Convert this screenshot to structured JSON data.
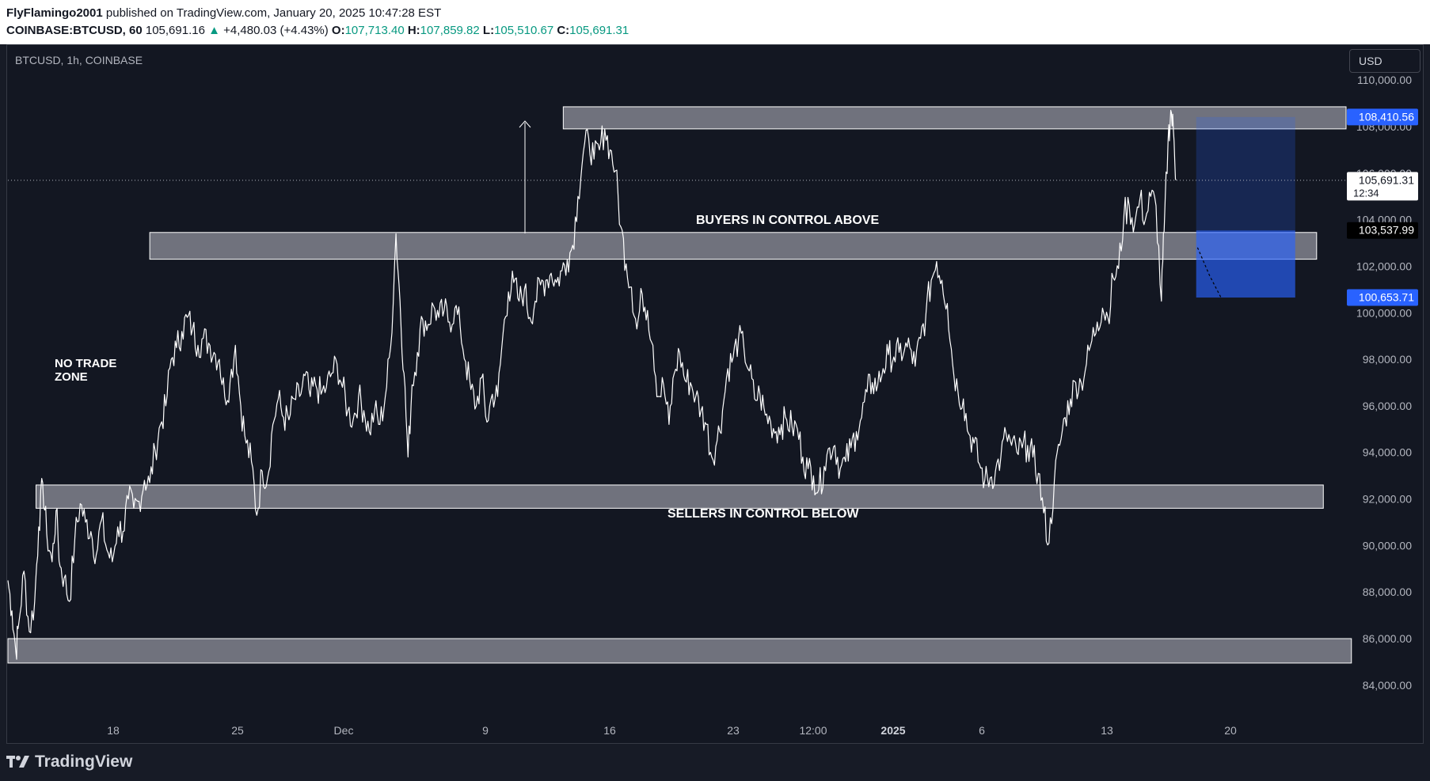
{
  "header": {
    "publisher": "FlyFlamingo2001",
    "published_text": "published on TradingView.com, January 20, 2025 10:47:28 EST",
    "symbol_line": "COINBASE:BTCUSD, 60",
    "last_price": "105,691.16",
    "change": "+4,480.03 (+4.43%)",
    "open_label": "O:",
    "open": "107,713.40",
    "high_label": "H:",
    "high": "107,859.82",
    "low_label": "L:",
    "low": "105,510.67",
    "close_label": "C:",
    "close": "105,691.31"
  },
  "legend": {
    "symbol": "BTCUSD, 1h, COINBASE"
  },
  "currency_button": "USD",
  "branding": {
    "name": "TradingView"
  },
  "annotations": {
    "buyers": "BUYERS IN CONTROL ABOVE",
    "sellers": "SELLERS IN CONTROL BELOW",
    "no_trade_line1": "NO TRADE",
    "no_trade_line2": "ZONE"
  },
  "price_tags": {
    "target": "108,410.56",
    "current": "105,691.31",
    "countdown": "12:34",
    "entry": "103,537.99",
    "stop": "100,653.71"
  },
  "colors": {
    "background": "#131722",
    "price_line": "#ffffff",
    "zone_fill": "#787b86",
    "position_box": "#2962ff",
    "up": "#089981"
  },
  "chart_data": {
    "type": "line",
    "symbol": "BTCUSD",
    "interval": "1h",
    "exchange": "COINBASE",
    "x_ticks": [
      "18",
      "25",
      "Dec",
      "9",
      "16",
      "23",
      "12:00",
      "2025",
      "6",
      "13",
      "20"
    ],
    "y_ticks": [
      84000,
      86000,
      88000,
      90000,
      92000,
      94000,
      96000,
      98000,
      100000,
      102000,
      104000,
      106000,
      108000,
      110000
    ],
    "y_tick_labels": [
      "84,000.00",
      "86,000.00",
      "88,000.00",
      "90,000.00",
      "92,000.00",
      "94,000.00",
      "96,000.00",
      "98,000.00",
      "100,000.00",
      "102,000.00",
      "104,000.00",
      "106,000.00",
      "108,000.00",
      "110,000.00"
    ],
    "ylim": [
      82500,
      111500
    ],
    "t_range": [
      0,
      100
    ],
    "series": [
      {
        "values": [
          [
            0,
            88500
          ],
          [
            0.3,
            87200
          ],
          [
            0.6,
            85400
          ],
          [
            0.8,
            86600
          ],
          [
            1.2,
            88900
          ],
          [
            1.6,
            86300
          ],
          [
            2.0,
            87600
          ],
          [
            2.3,
            90800
          ],
          [
            2.6,
            92700
          ],
          [
            2.9,
            90500
          ],
          [
            3.3,
            89300
          ],
          [
            3.6,
            91500
          ],
          [
            3.9,
            89100
          ],
          [
            4.2,
            88600
          ],
          [
            4.6,
            87600
          ],
          [
            5.0,
            90300
          ],
          [
            5.4,
            91800
          ],
          [
            5.8,
            91000
          ],
          [
            6.2,
            90600
          ],
          [
            6.6,
            89600
          ],
          [
            7.0,
            91100
          ],
          [
            7.4,
            89800
          ],
          [
            7.8,
            89300
          ],
          [
            8.2,
            90800
          ],
          [
            8.6,
            90600
          ],
          [
            9.0,
            92000
          ],
          [
            9.4,
            91600
          ],
          [
            9.8,
            91900
          ],
          [
            10.2,
            92800
          ],
          [
            10.6,
            92700
          ],
          [
            11.0,
            94100
          ],
          [
            11.4,
            95200
          ],
          [
            11.8,
            96000
          ],
          [
            12.2,
            98000
          ],
          [
            12.6,
            98500
          ],
          [
            13.0,
            99200
          ],
          [
            13.4,
            99800
          ],
          [
            13.8,
            99300
          ],
          [
            14.2,
            98600
          ],
          [
            14.6,
            98900
          ],
          [
            15.0,
            98700
          ],
          [
            15.4,
            98300
          ],
          [
            15.8,
            98000
          ],
          [
            16.2,
            96400
          ],
          [
            16.6,
            97000
          ],
          [
            17.0,
            98600
          ],
          [
            17.4,
            96000
          ],
          [
            17.8,
            94400
          ],
          [
            18.2,
            93600
          ],
          [
            18.6,
            91300
          ],
          [
            19.0,
            93200
          ],
          [
            19.4,
            92900
          ],
          [
            19.8,
            95200
          ],
          [
            20.2,
            96300
          ],
          [
            20.6,
            95500
          ],
          [
            21.0,
            95400
          ],
          [
            21.4,
            96300
          ],
          [
            21.8,
            96400
          ],
          [
            22.2,
            97300
          ],
          [
            22.6,
            96400
          ],
          [
            23.0,
            96900
          ],
          [
            23.4,
            96500
          ],
          [
            23.8,
            96800
          ],
          [
            24.2,
            97400
          ],
          [
            24.6,
            97800
          ],
          [
            25.0,
            96800
          ],
          [
            25.4,
            95800
          ],
          [
            25.8,
            95400
          ],
          [
            26.2,
            96400
          ],
          [
            26.6,
            95800
          ],
          [
            27.0,
            94900
          ],
          [
            27.4,
            95800
          ],
          [
            27.8,
            95200
          ],
          [
            28.2,
            96400
          ],
          [
            28.6,
            98500
          ],
          [
            29.0,
            103400
          ],
          [
            29.3,
            100500
          ],
          [
            29.6,
            97400
          ],
          [
            29.9,
            93800
          ],
          [
            30.2,
            96900
          ],
          [
            30.6,
            98300
          ],
          [
            31.0,
            99700
          ],
          [
            31.4,
            99500
          ],
          [
            31.8,
            100300
          ],
          [
            32.2,
            99800
          ],
          [
            32.6,
            100100
          ],
          [
            33.0,
            99600
          ],
          [
            33.4,
            100200
          ],
          [
            33.8,
            99400
          ],
          [
            34.2,
            97900
          ],
          [
            34.6,
            96700
          ],
          [
            35.0,
            96000
          ],
          [
            35.4,
            97200
          ],
          [
            35.8,
            95300
          ],
          [
            36.2,
            96500
          ],
          [
            36.6,
            96400
          ],
          [
            37.0,
            99100
          ],
          [
            37.4,
            100900
          ],
          [
            37.8,
            101300
          ],
          [
            38.2,
            100500
          ],
          [
            38.6,
            101000
          ],
          [
            39.0,
            99800
          ],
          [
            39.4,
            100500
          ],
          [
            39.8,
            101200
          ],
          [
            40.2,
            101400
          ],
          [
            40.6,
            101700
          ],
          [
            41.0,
            101300
          ],
          [
            41.4,
            101800
          ],
          [
            41.8,
            102300
          ],
          [
            42.2,
            102900
          ],
          [
            42.6,
            105000
          ],
          [
            43.0,
            106900
          ],
          [
            43.4,
            107500
          ],
          [
            43.8,
            106600
          ],
          [
            44.2,
            107000
          ],
          [
            44.6,
            107900
          ],
          [
            45.0,
            107000
          ],
          [
            45.4,
            106100
          ],
          [
            45.8,
            103700
          ],
          [
            46.2,
            102100
          ],
          [
            46.6,
            101100
          ],
          [
            47.0,
            99300
          ],
          [
            47.4,
            100800
          ],
          [
            47.8,
            100100
          ],
          [
            48.2,
            98600
          ],
          [
            48.6,
            96400
          ],
          [
            49.0,
            96900
          ],
          [
            49.4,
            95200
          ],
          [
            49.8,
            97400
          ],
          [
            50.2,
            98300
          ],
          [
            50.6,
            97100
          ],
          [
            51.0,
            97000
          ],
          [
            51.4,
            96400
          ],
          [
            51.8,
            95800
          ],
          [
            52.2,
            95200
          ],
          [
            52.6,
            93800
          ],
          [
            53.0,
            94500
          ],
          [
            53.4,
            95800
          ],
          [
            53.8,
            97600
          ],
          [
            54.2,
            98100
          ],
          [
            54.6,
            98900
          ],
          [
            55.0,
            98500
          ],
          [
            55.4,
            97500
          ],
          [
            55.8,
            96300
          ],
          [
            56.2,
            96500
          ],
          [
            56.6,
            95600
          ],
          [
            57.0,
            95300
          ],
          [
            57.4,
            94900
          ],
          [
            57.8,
            95200
          ],
          [
            58.2,
            95400
          ],
          [
            58.6,
            95100
          ],
          [
            59.0,
            95000
          ],
          [
            59.4,
            93800
          ],
          [
            59.8,
            93300
          ],
          [
            60.2,
            93000
          ],
          [
            60.6,
            92400
          ],
          [
            61.0,
            93400
          ],
          [
            61.4,
            94200
          ],
          [
            61.8,
            94300
          ],
          [
            62.2,
            93300
          ],
          [
            62.6,
            93600
          ],
          [
            63.0,
            94200
          ],
          [
            63.4,
            94900
          ],
          [
            63.8,
            95500
          ],
          [
            64.2,
            96600
          ],
          [
            64.6,
            97000
          ],
          [
            65.0,
            96900
          ],
          [
            65.4,
            97600
          ],
          [
            65.8,
            98200
          ],
          [
            66.2,
            98100
          ],
          [
            66.6,
            98300
          ],
          [
            67.0,
            98400
          ],
          [
            67.4,
            98500
          ],
          [
            67.8,
            97700
          ],
          [
            68.2,
            98900
          ],
          [
            68.6,
            99900
          ],
          [
            69.0,
            101400
          ],
          [
            69.4,
            102200
          ],
          [
            69.8,
            101400
          ],
          [
            70.2,
            100400
          ],
          [
            70.6,
            97800
          ],
          [
            71.0,
            96600
          ],
          [
            71.4,
            96300
          ],
          [
            71.8,
            94800
          ],
          [
            72.2,
            94400
          ],
          [
            72.6,
            93500
          ],
          [
            73.0,
            92800
          ],
          [
            73.4,
            92900
          ],
          [
            73.8,
            93200
          ],
          [
            74.2,
            93800
          ],
          [
            74.6,
            94800
          ],
          [
            75.0,
            94300
          ],
          [
            75.4,
            94000
          ],
          [
            75.8,
            94200
          ],
          [
            76.2,
            94300
          ],
          [
            76.6,
            93800
          ],
          [
            77.0,
            93100
          ],
          [
            77.4,
            91400
          ],
          [
            77.8,
            90100
          ],
          [
            78.2,
            92800
          ],
          [
            78.6,
            94300
          ],
          [
            79.0,
            95500
          ],
          [
            79.4,
            96300
          ],
          [
            79.8,
            97000
          ],
          [
            80.2,
            97000
          ],
          [
            80.6,
            97800
          ],
          [
            81.0,
            98800
          ],
          [
            81.4,
            99600
          ],
          [
            81.8,
            100200
          ],
          [
            82.2,
            99800
          ],
          [
            82.6,
            101500
          ],
          [
            83.0,
            101900
          ],
          [
            83.4,
            104200
          ],
          [
            83.8,
            104600
          ],
          [
            84.2,
            103800
          ],
          [
            84.6,
            104900
          ],
          [
            85.0,
            104000
          ],
          [
            85.4,
            105000
          ],
          [
            85.8,
            104600
          ],
          [
            86.2,
            100500
          ],
          [
            86.4,
            103500
          ],
          [
            86.7,
            107400
          ],
          [
            86.9,
            108700
          ],
          [
            87.1,
            107800
          ],
          [
            87.3,
            105700
          ]
        ]
      }
    ],
    "zones": [
      {
        "name": "resistance",
        "ymin": 107900,
        "ymax": 108850,
        "t_start": 41.5,
        "t_end": 100
      },
      {
        "name": "buyers-zone",
        "ymin": 102300,
        "ymax": 103450,
        "t_start": 10.6,
        "t_end": 97.8
      },
      {
        "name": "sellers-zone",
        "ymin": 91600,
        "ymax": 92600,
        "t_start": 2.1,
        "t_end": 98.3
      },
      {
        "name": "no-trade-zone",
        "ymin": 84950,
        "ymax": 86000,
        "t_start": 0,
        "t_end": 100.4
      }
    ],
    "long_position": {
      "t_start": 88.8,
      "t_end": 96.2,
      "entry": 103537.99,
      "target": 108410.56,
      "stop": 100653.71
    }
  }
}
